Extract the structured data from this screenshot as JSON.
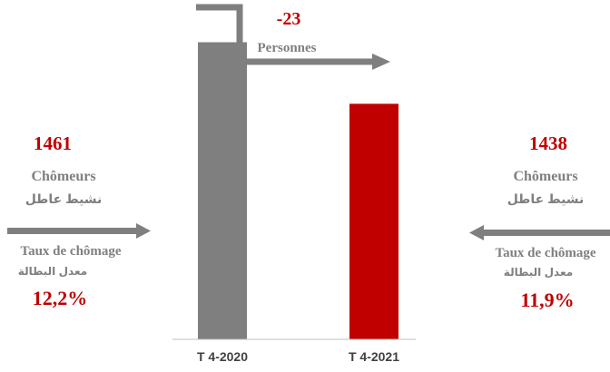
{
  "chart_data": {
    "type": "bar",
    "categories": [
      "T 4-2020",
      "T 4-2021"
    ],
    "values": [
      1461,
      1438
    ],
    "ylim": [
      1350,
      1470
    ],
    "colors": [
      "#7f7f7f",
      "#c00000"
    ],
    "title": "",
    "xlabel": "",
    "ylabel": ""
  },
  "change": {
    "value": "-23",
    "unit": "Personnes"
  },
  "left_panel": {
    "count": "1461",
    "label_fr": "Chômeurs",
    "label_ar": "نشيط عاطل",
    "rate_label_fr": "Taux de chômage",
    "rate_label_ar": "معدل البطالة",
    "rate": "12,2%"
  },
  "right_panel": {
    "count": "1438",
    "label_fr": "Chômeurs",
    "label_ar": "نشيط عاطل",
    "rate_label_fr": "Taux de chômage",
    "rate_label_ar": "معدل البطالة",
    "rate": "11,9%"
  },
  "colors": {
    "accent_red": "#c00000",
    "gray": "#7f7f7f",
    "axis": "#bfbfbf"
  }
}
